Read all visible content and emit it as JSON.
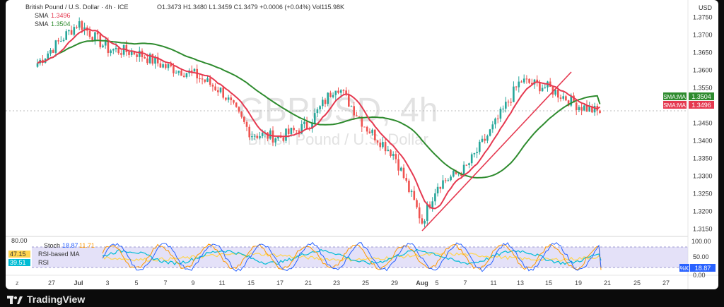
{
  "header": {
    "title": "British Pound / U.S. Dollar · 4h · ICE",
    "ohlc_text": "O1.3473  H1.3480  L1.3459  C1.3479  +0.0006 (+0.04%)  Vol115.98K",
    "sma_fast_label": "SMA",
    "sma_fast_value": "1.3496",
    "sma_slow_label": "SMA",
    "sma_slow_value": "1.3504"
  },
  "watermark": {
    "symbol": "GBPUSD, 4h",
    "name": "British Pound / U.S. Dollar"
  },
  "price_axis": {
    "currency": "USD",
    "ticks": [
      "1.3750",
      "1.3700",
      "1.3650",
      "1.3600",
      "1.3550",
      "1.3500",
      "1.3450",
      "1.3400",
      "1.3350",
      "1.3300",
      "1.3250",
      "1.3200",
      "1.3150"
    ],
    "tag_slow": {
      "label": "SMA:MA",
      "value": "1.3504"
    },
    "tag_fast": {
      "label": "SMA:MA",
      "value": "1.3496"
    }
  },
  "oscillator": {
    "top_value": "80.00",
    "stoch_label": "Stoch",
    "stoch_k": "18.87",
    "stoch_d": "11.71",
    "rsi_label": "RSI-based MA",
    "rsi_ma_value": "47.15",
    "rsi_value_label": "RSI",
    "rsi_value": "39.51",
    "axis_ticks": [
      "100.00",
      "50.00",
      "0.00"
    ],
    "k_tag": "%K",
    "k_value": "18.87"
  },
  "time_axis": {
    "left_icon": "z",
    "labels": [
      "27",
      "Jul",
      "3",
      "5",
      "7",
      "9",
      "11",
      "15",
      "17",
      "21",
      "23",
      "25",
      "29",
      "Aug",
      "5",
      "7",
      "11",
      "13",
      "15",
      "19",
      "21",
      "25",
      "27"
    ]
  },
  "footer": {
    "brand": "TradingView"
  },
  "colors": {
    "up": "#26a69a",
    "down": "#ef5350",
    "sma_fast": "#e53950",
    "sma_slow": "#2e8b2e",
    "stoch_k": "#2962ff",
    "stoch_d": "#ff9800",
    "rsi": "#00bcd4",
    "rsi_ma": "#ffd54f",
    "osc_band": "#d9d4f5"
  },
  "chart_data": {
    "type": "candlestick",
    "symbol": "GBPUSD",
    "interval": "4h",
    "ylim": [
      1.3135,
      1.3775
    ],
    "grid": false,
    "x_ticks": [
      "27",
      "Jul",
      "3",
      "5",
      "7",
      "9",
      "11",
      "15",
      "17",
      "21",
      "23",
      "25",
      "29",
      "Aug",
      "5",
      "7",
      "11",
      "13",
      "15",
      "19",
      "21",
      "25",
      "27"
    ],
    "close_path": [
      [
        "27",
        1.362
      ],
      [
        "Jul",
        1.3735
      ],
      [
        "3",
        1.366
      ],
      [
        "5",
        1.365
      ],
      [
        "7",
        1.361
      ],
      [
        "9",
        1.359
      ],
      [
        "11",
        1.354
      ],
      [
        "15",
        1.342
      ],
      [
        "17",
        1.341
      ],
      [
        "21",
        1.3445
      ],
      [
        "23",
        1.356
      ],
      [
        "25",
        1.344
      ],
      [
        "29",
        1.336
      ],
      [
        "Aug",
        1.317
      ],
      [
        "5",
        1.3275
      ],
      [
        "7",
        1.332
      ],
      [
        "11",
        1.344
      ],
      [
        "13",
        1.357
      ],
      [
        "15",
        1.355
      ],
      [
        "19",
        1.35
      ],
      [
        "20",
        1.3479
      ]
    ],
    "sma_fast_last": 1.3496,
    "sma_slow_last": 1.3504,
    "trendline": [
      [
        "Aug",
        1.3145
      ],
      [
        "17",
        1.3595
      ]
    ],
    "oscillator": {
      "stoch_k": 18.87,
      "stoch_d": 11.71,
      "rsi": 39.51,
      "rsi_ma": 47.15
    }
  }
}
